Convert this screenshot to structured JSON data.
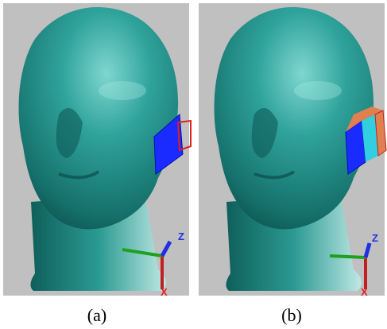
{
  "panels": [
    {
      "caption": "(a)",
      "axes": {
        "z": "Z",
        "x": "X"
      }
    },
    {
      "caption": "(b)",
      "axes": {
        "z": "Z",
        "x": "X"
      }
    }
  ]
}
